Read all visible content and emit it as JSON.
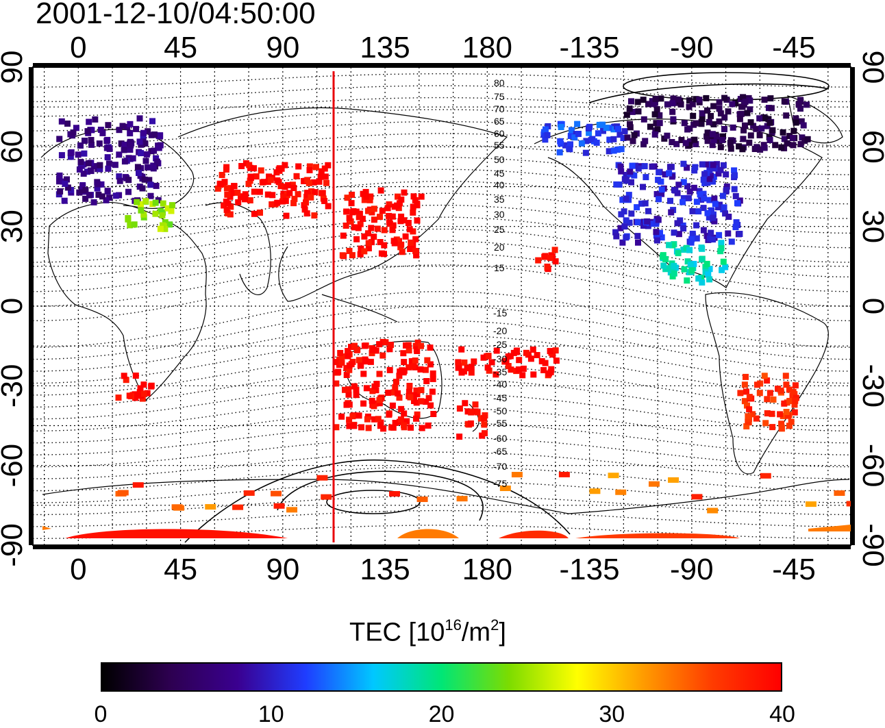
{
  "timestamp": "2001-12-10/04:50:00",
  "map": {
    "top_axis_ticks": [
      "0",
      "45",
      "90",
      "135",
      "180",
      "-135",
      "-90",
      "-45"
    ],
    "bottom_axis_ticks": [
      "0",
      "45",
      "90",
      "135",
      "180",
      "-135",
      "-90",
      "-45"
    ],
    "left_axis_ticks": [
      "90",
      "60",
      "30",
      "0",
      "-30",
      "-60",
      "-90"
    ],
    "right_axis_ticks": [
      "90",
      "60",
      "30",
      "0",
      "-30",
      "-60",
      "-90"
    ],
    "longitude_range": [
      -20,
      340
    ],
    "latitude_range": [
      -90,
      90
    ],
    "grid": "dotted, every 15 degrees",
    "terminator_meridian_lon": 107,
    "terminator_color": "#e8000b",
    "contour_labels": [
      "80",
      "75",
      "70",
      "65",
      "60",
      "55",
      "50",
      "45",
      "40",
      "35",
      "30",
      "25",
      "20",
      "15",
      "-15",
      "-20",
      "-25",
      "-30",
      "-35",
      "-40",
      "-45",
      "-50",
      "-55",
      "-60",
      "-65",
      "-70",
      "-75"
    ]
  },
  "colorbar": {
    "title_text": "TEC  [10",
    "title_sup1": "16",
    "title_mid": "/m",
    "title_sup2": "2",
    "title_end": "]",
    "ticks": [
      "0",
      "10",
      "20",
      "30",
      "40"
    ],
    "range": [
      0,
      40
    ],
    "colors": [
      "#000000",
      "#2d0050",
      "#3a0090",
      "#1f3dff",
      "#00c8ff",
      "#00e676",
      "#7ddc00",
      "#ffff00",
      "#ff9900",
      "#ff3b00",
      "#ff0000"
    ]
  },
  "tec_regions": [
    {
      "region": "Europe",
      "lon": [
        -10,
        35
      ],
      "lat": [
        40,
        72
      ],
      "tec": 7
    },
    {
      "region": "Europe edge",
      "lon": [
        20,
        40
      ],
      "lat": [
        30,
        42
      ],
      "tec": 25
    },
    {
      "region": "East Asia",
      "lon": [
        115,
        150
      ],
      "lat": [
        20,
        45
      ],
      "tec": 40
    },
    {
      "region": "Central Asia",
      "lon": [
        60,
        110
      ],
      "lat": [
        35,
        55
      ],
      "tec": 40
    },
    {
      "region": "Australia",
      "lon": [
        112,
        155
      ],
      "lat": [
        -45,
        -12
      ],
      "tec": 40
    },
    {
      "region": "New Zealand",
      "lon": [
        165,
        178
      ],
      "lat": [
        -48,
        -35
      ],
      "tec": 40
    },
    {
      "region": "Pacific islands",
      "lon": [
        165,
        212
      ],
      "lat": [
        -25,
        -15
      ],
      "tec": 40
    },
    {
      "region": "Hawaii",
      "lon": [
        200,
        210
      ],
      "lat": [
        15,
        25
      ],
      "tec": 40
    },
    {
      "region": "North America",
      "lon": [
        235,
        290
      ],
      "lat": [
        25,
        55
      ],
      "tec": 10
    },
    {
      "region": "Alaska",
      "lon": [
        200,
        240
      ],
      "lat": [
        58,
        70
      ],
      "tec": 12
    },
    {
      "region": "Canada Arctic",
      "lon": [
        240,
        320
      ],
      "lat": [
        60,
        80
      ],
      "tec": 4
    },
    {
      "region": "Central America",
      "lon": [
        255,
        285
      ],
      "lat": [
        10,
        25
      ],
      "tec": 18
    },
    {
      "region": "South America",
      "lon": [
        290,
        315
      ],
      "lat": [
        -45,
        -25
      ],
      "tec": 37
    },
    {
      "region": "Southern Africa",
      "lon": [
        15,
        32
      ],
      "lat": [
        -35,
        -25
      ],
      "tec": 40
    },
    {
      "region": "Antarctic band",
      "lon": [
        0,
        340
      ],
      "lat": [
        -90,
        -60
      ],
      "tec": 37
    }
  ]
}
